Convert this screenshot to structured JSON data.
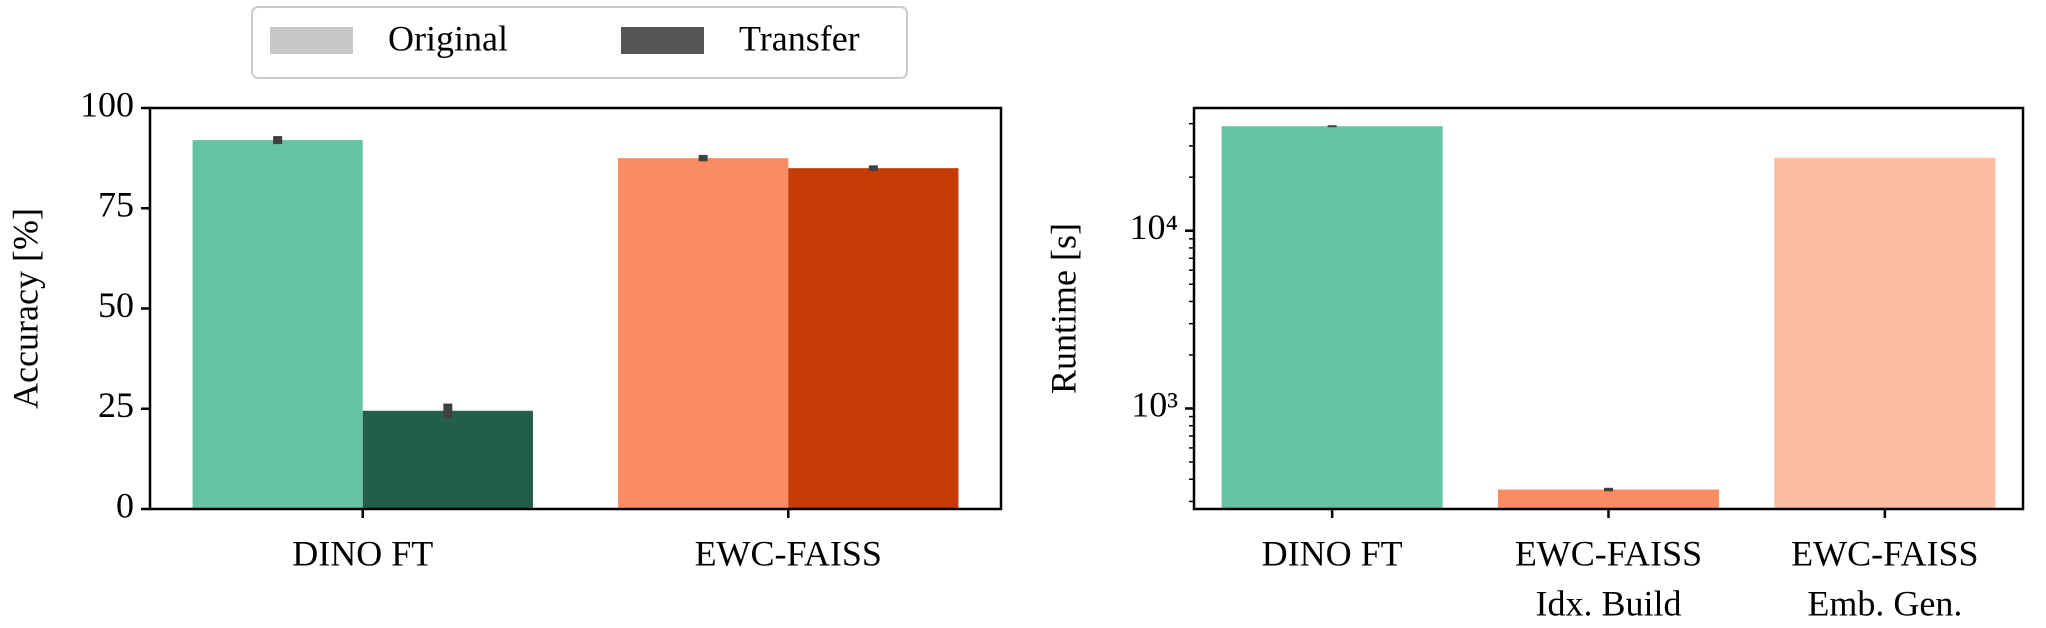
{
  "chart_data": [
    {
      "type": "bar",
      "categories": [
        [
          "DINO FT"
        ],
        [
          "EWC-FAISS"
        ]
      ],
      "series": [
        {
          "name": "Original",
          "color": "#c8c8c8",
          "colors": [
            "#66c2a5",
            "#fc8d62"
          ],
          "values": [
            92,
            87.5
          ],
          "errors": [
            1,
            0.8
          ]
        },
        {
          "name": "Transfer",
          "color": "#555555",
          "colors": [
            "#235e4d",
            "#c43b06"
          ],
          "values": [
            24.5,
            85
          ],
          "errors": [
            1.8,
            0.7
          ]
        }
      ],
      "ylabel": "Accuracy [%]",
      "ylim": [
        0,
        100
      ],
      "yticks": [
        0,
        25,
        50,
        75,
        100
      ],
      "legend": "top"
    },
    {
      "type": "bar",
      "categories": [
        [
          "DINO FT"
        ],
        [
          "EWC-FAISS",
          "Idx. Build"
        ],
        [
          "EWC-FAISS",
          "Emb. Gen."
        ]
      ],
      "values": [
        38700,
        350,
        25700
      ],
      "errors": [
        500,
        8,
        null
      ],
      "colors": [
        "#66c2a5",
        "#fc8d62",
        "#fdbba1"
      ],
      "ylabel": "Runtime [s]",
      "yscale": "log",
      "ylim": [
        272,
        49000
      ],
      "yticks": [
        {
          "value": 1000,
          "label": "10³"
        },
        {
          "value": 10000,
          "label": "10⁴"
        }
      ],
      "yminorticks": [
        300,
        400,
        500,
        600,
        700,
        800,
        900,
        2000,
        3000,
        4000,
        5000,
        6000,
        7000,
        8000,
        9000,
        20000,
        30000,
        40000
      ]
    }
  ]
}
